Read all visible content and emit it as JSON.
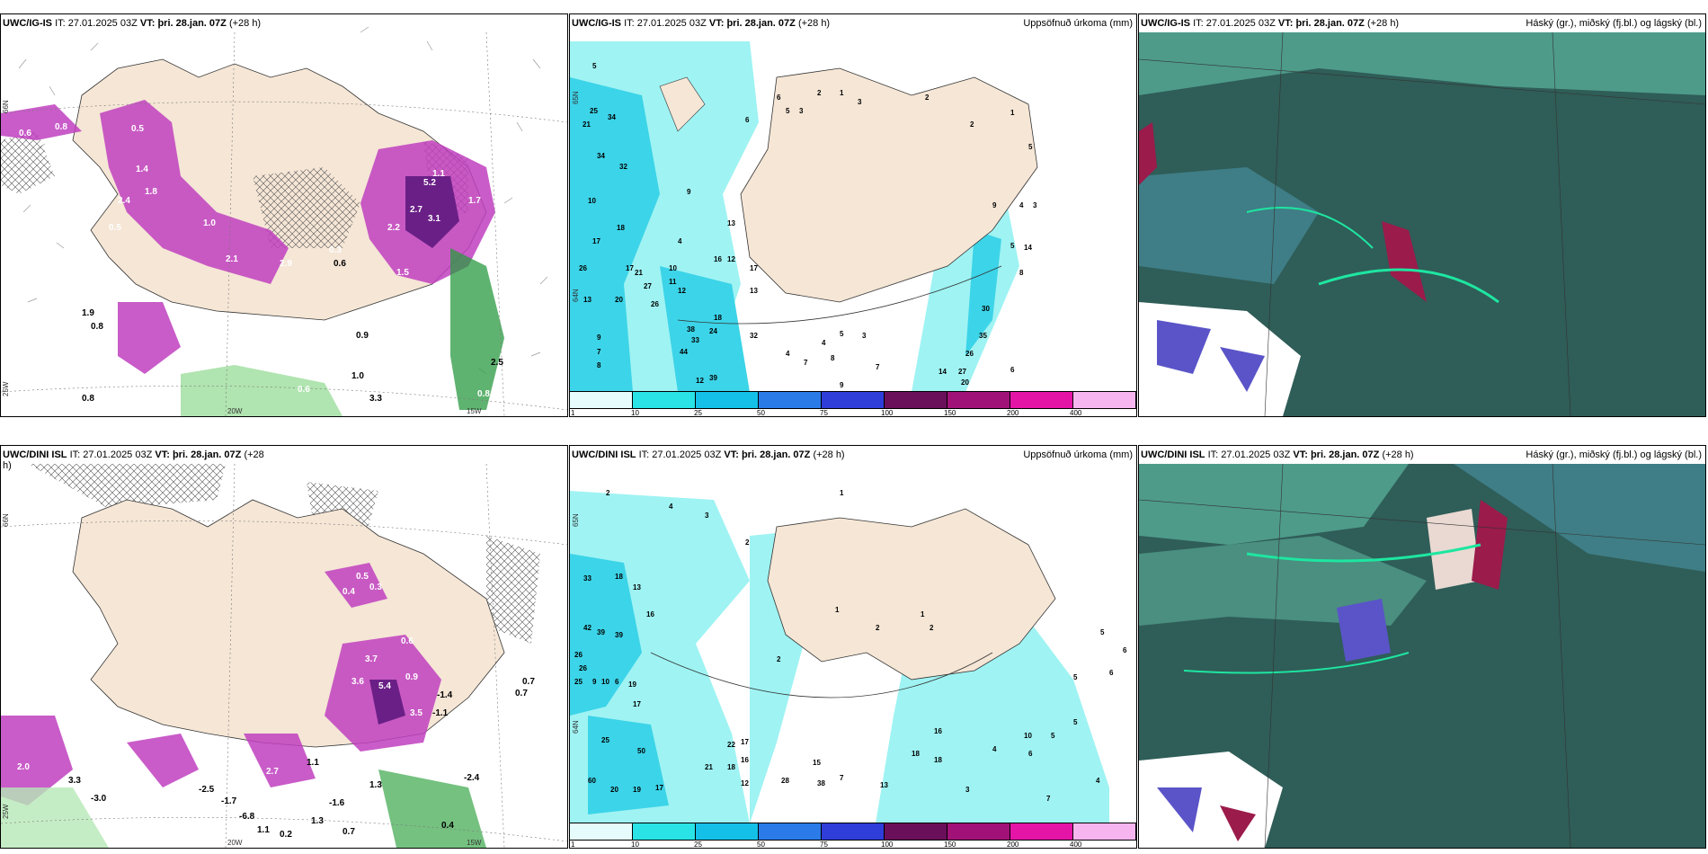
{
  "panels": {
    "p1": {
      "model": "UWC/IG-IS",
      "it_label": "IT:",
      "it_value": "27.01.2025 03Z",
      "vt_label": "VT:",
      "vt_value": "þri. 28.jan. 07Z",
      "lead": "(+28 h)",
      "right_title": "",
      "lat_labels": [
        "66N",
        "25W"
      ],
      "lon_labels": [
        "20W",
        "15W"
      ],
      "values": [
        "0.6",
        "0.8",
        "0.5",
        "1.4",
        "1.8",
        "2.4",
        "1.0",
        "2.1",
        "2.9",
        "2.2",
        "0.3",
        "1.5",
        "0.9",
        "1.1",
        "0.8",
        "1.9",
        "2.7",
        "5.2",
        "3.1",
        "1.7",
        "0.6",
        "0.8",
        "0.6",
        "1.0",
        "0.5",
        "2.5",
        "0.8",
        "3.3"
      ]
    },
    "p2": {
      "model": "UWC/IG-IS",
      "it_label": "IT:",
      "it_value": "27.01.2025 03Z",
      "vt_label": "VT:",
      "vt_value": "þri. 28.jan. 07Z",
      "lead": "(+28 h)",
      "right_title": "Uppsöfnuð úrkoma (mm)",
      "lat_labels": [
        "65N",
        "64N"
      ],
      "values": [
        "5",
        "25",
        "34",
        "21",
        "34",
        "32",
        "10",
        "17",
        "18",
        "26",
        "13",
        "20",
        "17",
        "21",
        "27",
        "26",
        "9",
        "7",
        "8",
        "4",
        "10",
        "11",
        "12",
        "13",
        "16",
        "12",
        "17",
        "18",
        "13",
        "24",
        "32",
        "38",
        "33",
        "44",
        "39",
        "12",
        "9",
        "6",
        "6",
        "5",
        "3",
        "2",
        "1",
        "3",
        "2",
        "2",
        "1",
        "5",
        "9",
        "4",
        "3",
        "5",
        "8",
        "14",
        "30",
        "35",
        "26",
        "14",
        "27",
        "20",
        "6",
        "7",
        "8",
        "7",
        "4",
        "3",
        "5",
        "4",
        "9"
      ],
      "legend_ticks": [
        "1",
        "10",
        "25",
        "50",
        "75",
        "100",
        "150",
        "200",
        "400"
      ],
      "legend_colors": [
        "#e6fbfb",
        "#29e3e6",
        "#14c0e8",
        "#2a7be8",
        "#2f3ed8",
        "#6a0f5a",
        "#a11278",
        "#e414a6",
        "#f7b5ef"
      ]
    },
    "p3": {
      "model": "UWC/IG-IS",
      "it_label": "IT:",
      "it_value": "27.01.2025 03Z",
      "vt_label": "VT:",
      "vt_value": "þri. 28.jan. 07Z",
      "lead": "(+28 h)",
      "right_title": "Háský (gr.), miðský (fj.bl.) og lágský (bl.)"
    },
    "p4": {
      "model": "UWC/DINI ISL",
      "it_label": "IT:",
      "it_value": "27.01.2025 03Z",
      "vt_label": "VT:",
      "vt_value": "þri. 28.jan. 07Z",
      "lead": "(+28",
      "lead2": "h)",
      "right_title": "",
      "lat_labels": [
        "66N",
        "25W"
      ],
      "lon_labels": [
        "20W",
        "15W"
      ],
      "values": [
        "0.5",
        "0.4",
        "0.3",
        "0.6",
        "3.7",
        "3.6",
        "5.4",
        "0.9",
        "3.5",
        "-1.4",
        "-1.1",
        "0.7",
        "0.7",
        "-2.4",
        "-3.0",
        "-2.5",
        "-1.7",
        "-6.8",
        "1.1",
        "0.2",
        "1.3",
        "-1.6",
        "0.7",
        "0.4",
        "2.0",
        "3.3",
        "2.7",
        "1.1",
        "1.3",
        "0.4"
      ]
    },
    "p5": {
      "model": "UWC/DINI ISL",
      "it_label": "IT:",
      "it_value": "27.01.2025 03Z",
      "vt_label": "VT:",
      "vt_value": "þri. 28.jan. 07Z",
      "lead": "(+28 h)",
      "right_title": "Uppsöfnuð úrkoma (mm)",
      "lat_labels": [
        "65N",
        "64N"
      ],
      "values": [
        "2",
        "4",
        "3",
        "2",
        "1",
        "33",
        "18",
        "13",
        "16",
        "42",
        "39",
        "39",
        "26",
        "26",
        "25",
        "9",
        "10",
        "6",
        "19",
        "17",
        "25",
        "50",
        "60",
        "20",
        "19",
        "17",
        "22",
        "17",
        "21",
        "18",
        "16",
        "12",
        "15",
        "28",
        "38",
        "7",
        "13",
        "18",
        "18",
        "16",
        "10",
        "6",
        "5",
        "4",
        "5",
        "5",
        "6",
        "4",
        "7",
        "3",
        "2",
        "1",
        "2",
        "1",
        "2",
        "5",
        "6"
      ],
      "legend_ticks": [
        "1",
        "10",
        "25",
        "50",
        "75",
        "100",
        "150",
        "200",
        "400"
      ],
      "legend_colors": [
        "#e6fbfb",
        "#29e3e6",
        "#14c0e8",
        "#2a7be8",
        "#2f3ed8",
        "#6a0f5a",
        "#a11278",
        "#e414a6",
        "#f7b5ef"
      ]
    },
    "p6": {
      "model": "UWC/DINI ISL",
      "it_label": "IT:",
      "it_value": "27.01.2025 03Z",
      "vt_label": "VT:",
      "vt_value": "þri. 28.jan. 07Z",
      "lead": "(+28 h)",
      "right_title": "Háský (gr.), miðský (fj.bl.) og lágský (bl.)"
    }
  },
  "colors": {
    "land": "#f5e6d6",
    "precip_light": "#9ff3f3",
    "precip_mid": "#3cd4e8",
    "magenta": "#c040c0",
    "purple": "#6a1f86",
    "cloud_dark": "#2f5d58",
    "cloud_teal": "#3f8a7e",
    "cloud_green": "#1ee6a0",
    "cloud_red": "#9b1b4b",
    "cloud_blue": "#5a54c8"
  }
}
